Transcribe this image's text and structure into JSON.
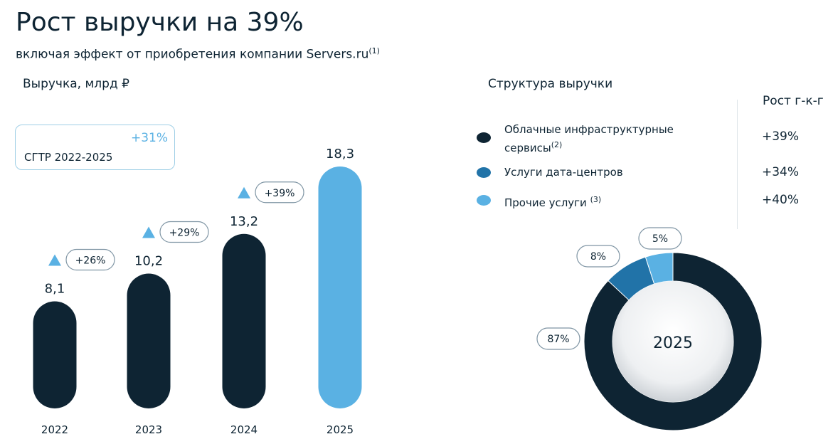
{
  "title": "Рост выручки на 39%",
  "subtitle": "включая эффект от приобретения компании Servers.ru",
  "subtitle_note": "(1)",
  "cagr": {
    "value": "+31%",
    "label": "CГТР 2022-2025"
  },
  "colors": {
    "dark": "#0e2433",
    "mid": "#2173a8",
    "light": "#5ab1e3",
    "pill_border": "#7f95a4"
  },
  "chart_data": [
    {
      "type": "bar",
      "title": "Выручка, млрд ₽",
      "categories": [
        "2022",
        "2023",
        "2024",
        "2025"
      ],
      "values": [
        8.1,
        10.2,
        13.2,
        18.3
      ],
      "value_labels": [
        "8,1",
        "10,2",
        "13,2",
        "18,3"
      ],
      "growth_labels": [
        "+26%",
        "+29%",
        "+39%",
        ""
      ],
      "ylim": [
        0,
        18.3
      ],
      "grid": false
    },
    {
      "type": "pie",
      "title": "Структура выручки",
      "center_label": "2025",
      "legend_heading": "Рост г-к-г",
      "legend_position": "top",
      "slices": [
        {
          "label": "Облачные инфраструктурные сервисы",
          "note": "(2)",
          "value": 87,
          "value_label": "87%",
          "growth": "+39%",
          "color": "#0e2433"
        },
        {
          "label": "Услуги дата-центров",
          "note": "",
          "value": 8,
          "value_label": "8%",
          "growth": "+34%",
          "color": "#2173a8"
        },
        {
          "label": "Прочие услуги",
          "note": "(3)",
          "value": 5,
          "value_label": "5%",
          "growth": "+40%",
          "color": "#5ab1e3"
        }
      ]
    }
  ]
}
